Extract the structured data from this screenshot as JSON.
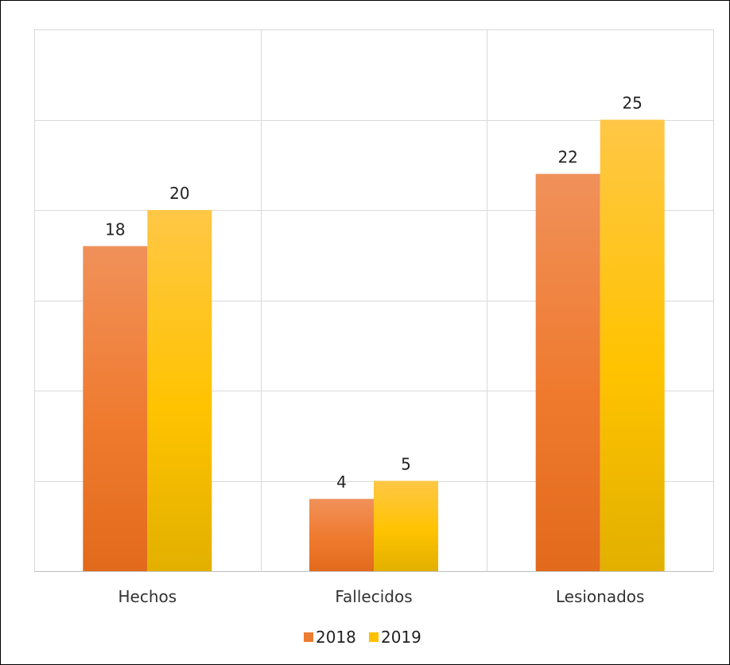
{
  "chart_data": {
    "type": "bar",
    "categories": [
      "Hechos",
      "Fallecidos",
      "Lesionados"
    ],
    "series": [
      {
        "name": "2018",
        "values": [
          18,
          4,
          22
        ],
        "color": "#ED7D31"
      },
      {
        "name": "2019",
        "values": [
          20,
          5,
          25
        ],
        "color": "#FFC000"
      }
    ],
    "ylim": [
      0,
      30
    ],
    "grid": true,
    "legend": "bottom",
    "title": "",
    "xlabel": "",
    "ylabel": ""
  }
}
